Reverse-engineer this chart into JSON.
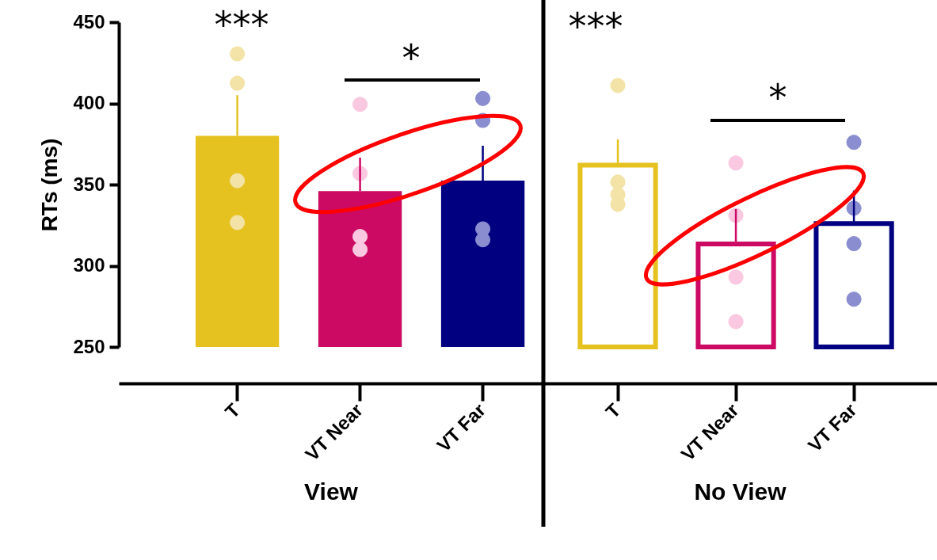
{
  "chart_data": [
    {
      "type": "bar",
      "xlabel": "View",
      "ylabel": "RTs (ms)",
      "categories": [
        "T",
        "VT Near",
        "VT Far"
      ],
      "ylim": [
        250,
        450
      ],
      "yticks": [
        250,
        300,
        350,
        400,
        450
      ],
      "annotations": [
        "***",
        "*"
      ],
      "series": [
        {
          "colors": [
            "#e5c21f",
            "#cc0a64",
            "#000080"
          ],
          "values": [
            380,
            346,
            352.4
          ],
          "errors": [
            [
              380,
              405
            ],
            [
              346,
              366.6
            ],
            [
              352.4,
              373.9
            ]
          ]
        },
        {
          "type": "scatter",
          "color": "#f3e3a6",
          "x": [
            "T",
            "T",
            "T",
            "T"
          ],
          "values": [
            430.5,
            412.4,
            352.4,
            326.6
          ]
        },
        {
          "type": "scatter",
          "color": "#fac8e0",
          "x": [
            "VT Near",
            "VT Near",
            "VT Near",
            "VT Near"
          ],
          "values": [
            399.4,
            356.8,
            318,
            310
          ]
        },
        {
          "type": "scatter",
          "color": "#8a8dcf",
          "x": [
            "VT Far",
            "VT Far",
            "VT Far",
            "VT Far"
          ],
          "values": [
            403,
            389.5,
            322.7,
            316
          ]
        }
      ]
    },
    {
      "type": "bar",
      "xlabel": "No View",
      "categories": [
        "T",
        "VT Near",
        "VT Far"
      ],
      "ylim": [
        250,
        450
      ],
      "yticks": [
        250,
        300,
        350,
        400,
        450
      ],
      "tick_labels": "x",
      "annotations": [
        "***",
        "*"
      ],
      "series": [
        {
          "colors": [
            "#e5c21f",
            "#cc0a64",
            "#000080"
          ],
          "values": [
            362,
            313.4,
            326
          ],
          "errors": [
            [
              362,
              377.8
            ],
            [
              313.4,
              334.9
            ],
            [
              326,
              346.3
            ]
          ]
        },
        {
          "type": "scatter",
          "color": "#f3e3a6",
          "x": [
            "T",
            "T",
            "T",
            "T"
          ],
          "values": [
            411,
            351.5,
            343.8,
            337.8
          ]
        },
        {
          "type": "scatter",
          "color": "#fac8e0",
          "x": [
            "VT Near",
            "VT Near",
            "VT Near",
            "VT Near"
          ],
          "values": [
            363.3,
            331,
            293,
            265.6
          ]
        },
        {
          "type": "scatter",
          "color": "#8a8dcf",
          "x": [
            "VT Far",
            "VT Far",
            "VT Far",
            "VT Far"
          ],
          "values": [
            376,
            335.4,
            313.6,
            279.4
          ]
        }
      ]
    }
  ]
}
